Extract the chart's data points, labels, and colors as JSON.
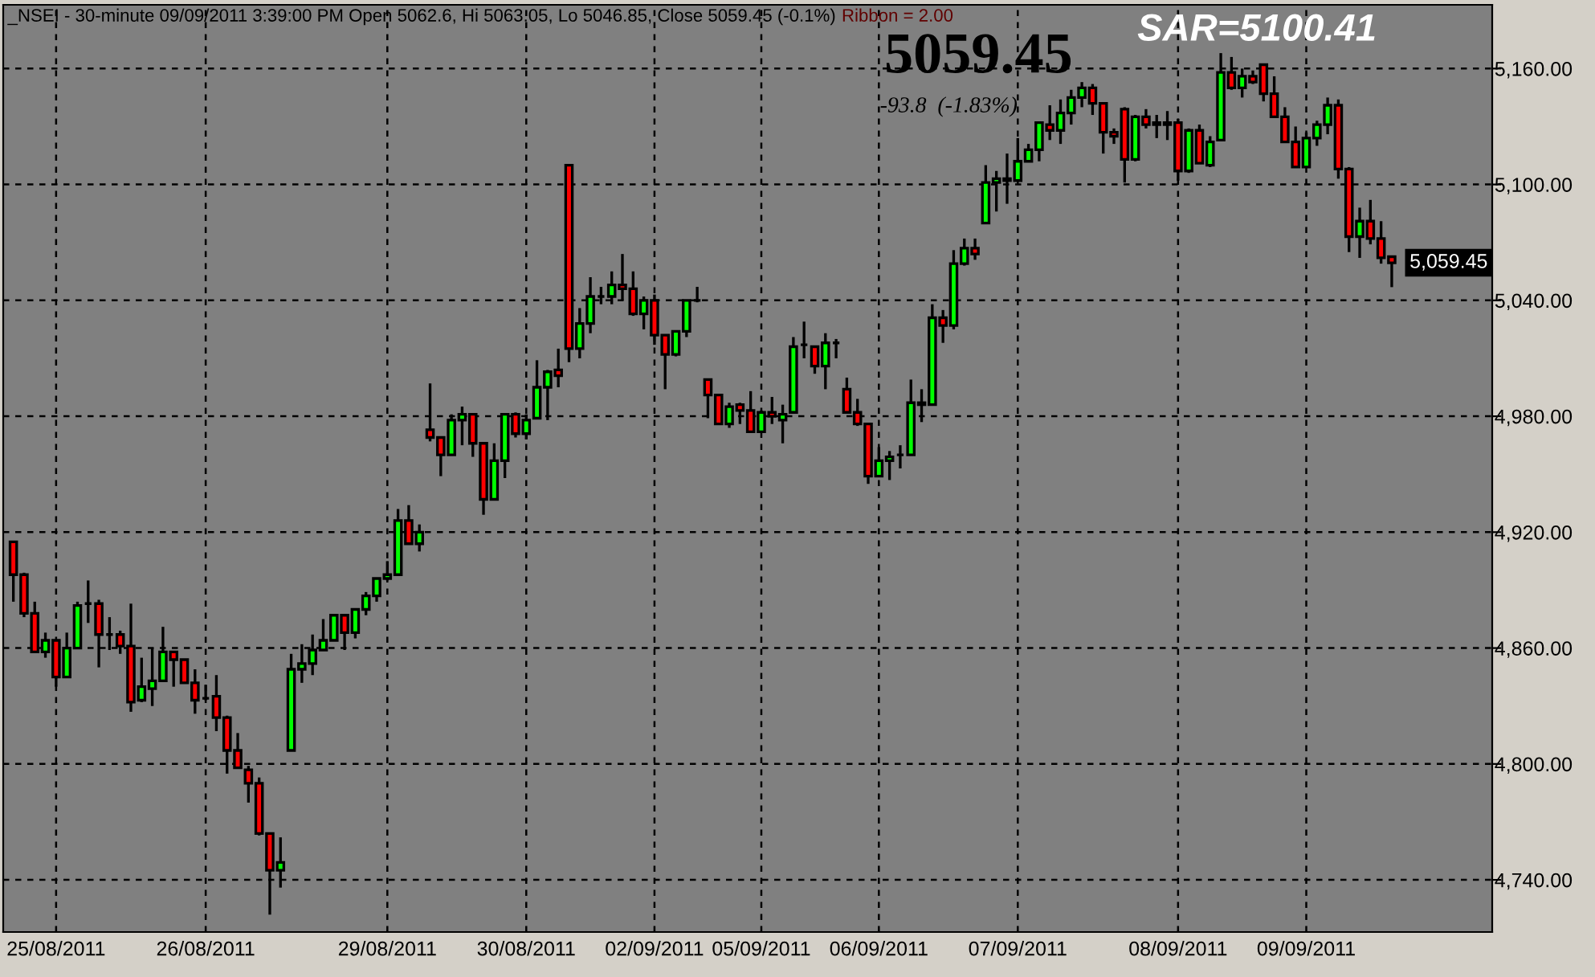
{
  "chart_data": {
    "type": "candlestick",
    "title": "_NSEI - 30-minute 09/09/2011 3:39:00 PM Open 5062.6, Hi 5063.05, Lo 5046.85, Close 5059.45 (-0.1%)",
    "annotations": [
      "Ribbon = 2.00",
      "5059.45",
      "-93.8  (-1.83%)",
      "SAR=5100.41",
      "5,059.45"
    ],
    "categories": [
      null,
      null,
      null,
      null,
      "25/08/2011",
      null,
      null,
      null,
      null,
      null,
      null,
      null,
      null,
      null,
      null,
      null,
      null,
      null,
      "26/08/2011",
      null,
      null,
      null,
      null,
      null,
      null,
      null,
      null,
      null,
      null,
      null,
      null,
      null,
      null,
      null,
      null,
      "29/08/2011",
      null,
      null,
      null,
      null,
      null,
      null,
      null,
      null,
      null,
      null,
      null,
      null,
      "30/08/2011",
      null,
      null,
      null,
      null,
      null,
      null,
      null,
      null,
      null,
      null,
      null,
      "02/09/2011",
      null,
      null,
      null,
      null,
      null,
      null,
      null,
      null,
      null,
      "05/09/2011",
      null,
      null,
      null,
      null,
      null,
      null,
      null,
      null,
      null,
      null,
      "06/09/2011",
      null,
      null,
      null,
      null,
      null,
      null,
      null,
      null,
      null,
      null,
      null,
      null,
      "07/09/2011",
      null,
      null,
      null,
      null,
      null,
      null,
      null,
      null,
      null,
      null,
      null,
      null,
      null,
      null,
      "08/09/2011",
      null,
      null,
      null,
      null,
      null,
      null,
      null,
      null,
      null,
      null,
      null,
      "09/09/2011",
      null,
      null,
      null,
      null,
      null,
      null,
      null,
      null
    ],
    "ohlc": [
      [
        4915,
        4915,
        4884,
        4898
      ],
      [
        4898,
        4899,
        4876,
        4878
      ],
      [
        4878,
        4884,
        4858,
        4858
      ],
      [
        4858,
        4868,
        4855,
        4864
      ],
      [
        4864,
        4864,
        4840,
        4845
      ],
      [
        4845,
        4868,
        4845,
        4860
      ],
      [
        4860,
        4884,
        4860,
        4882
      ],
      [
        4883,
        4895,
        4873,
        4883
      ],
      [
        4883,
        4885,
        4850,
        4867
      ],
      [
        4867,
        4876,
        4859,
        4867
      ],
      [
        4867,
        4869,
        4857,
        4861
      ],
      [
        4861,
        4883,
        4827,
        4832
      ],
      [
        4833,
        4855,
        4832,
        4840
      ],
      [
        4839,
        4860,
        4830,
        4843
      ],
      [
        4843,
        4871,
        4843,
        4858
      ],
      [
        4858,
        4858,
        4840,
        4854
      ],
      [
        4854,
        4854,
        4842,
        4842
      ],
      [
        4842,
        4849,
        4826,
        4833
      ],
      [
        4834,
        4841,
        4833,
        4834
      ],
      [
        4835,
        4846,
        4817,
        4824
      ],
      [
        4824,
        4825,
        4795,
        4807
      ],
      [
        4807,
        4816,
        4798,
        4798
      ],
      [
        4797,
        4799,
        4780,
        4790
      ],
      [
        4790,
        4793,
        4763,
        4764
      ],
      [
        4764,
        4764,
        4722,
        4745
      ],
      [
        4745,
        4762,
        4736,
        4749
      ],
      [
        4807,
        4857,
        4807,
        4849
      ],
      [
        4849,
        4862,
        4842,
        4852
      ],
      [
        4852,
        4867,
        4846,
        4859
      ],
      [
        4859,
        4875,
        4859,
        4864
      ],
      [
        4864,
        4877,
        4864,
        4877
      ],
      [
        4877,
        4877,
        4859,
        4868
      ],
      [
        4868,
        4880,
        4865,
        4880
      ],
      [
        4880,
        4889,
        4877,
        4887
      ],
      [
        4887,
        4896,
        4884,
        4896
      ],
      [
        4896,
        4905,
        4895,
        4898
      ],
      [
        4898,
        4932,
        4898,
        4926
      ],
      [
        4926,
        4934,
        4914,
        4914
      ],
      [
        4914,
        4924,
        4910,
        4920
      ],
      [
        4973,
        4997,
        4967,
        4969
      ],
      [
        4969,
        4969,
        4949,
        4960
      ],
      [
        4960,
        4981,
        4960,
        4978
      ],
      [
        4978,
        4985,
        4965,
        4981
      ],
      [
        4981,
        4981,
        4959,
        4966
      ],
      [
        4966,
        4966,
        4929,
        4937
      ],
      [
        4937,
        4966,
        4937,
        4957
      ],
      [
        4957,
        4981,
        4948,
        4981
      ],
      [
        4981,
        4982,
        4969,
        4971
      ],
      [
        4971,
        4981,
        4968,
        4978
      ],
      [
        4979,
        5009,
        4979,
        4995
      ],
      [
        4995,
        5004,
        4978,
        5003
      ],
      [
        5004,
        5015,
        4995,
        5001
      ],
      [
        5110,
        5110,
        5008,
        5015
      ],
      [
        5015,
        5036,
        5010,
        5028
      ],
      [
        5028,
        5052,
        5023,
        5042
      ],
      [
        5042,
        5047,
        5038,
        5042
      ],
      [
        5042,
        5055,
        5038,
        5048
      ],
      [
        5048,
        5064,
        5040,
        5046
      ],
      [
        5046,
        5055,
        5032,
        5033
      ],
      [
        5033,
        5042,
        5025,
        5040
      ],
      [
        5040,
        5043,
        5017,
        5022
      ],
      [
        5022,
        5022,
        4994,
        5012
      ],
      [
        5012,
        5024,
        5011,
        5024
      ],
      [
        5024,
        5040,
        5021,
        5040
      ],
      [
        5040,
        5047,
        5039,
        5040
      ],
      [
        4999,
        4999,
        4979,
        4991
      ],
      [
        4991,
        4991,
        4976,
        4976
      ],
      [
        4976,
        4987,
        4974,
        4985
      ],
      [
        4986,
        4987,
        4976,
        4983
      ],
      [
        4983,
        4993,
        4972,
        4972
      ],
      [
        4972,
        4983,
        4972,
        4982
      ],
      [
        4982,
        4990,
        4976,
        4980
      ],
      [
        4978,
        4986,
        4966,
        4981
      ],
      [
        4982,
        5021,
        4982,
        5016
      ],
      [
        5017,
        5029,
        5010,
        5017
      ],
      [
        5016,
        5016,
        5002,
        5006
      ],
      [
        5006,
        5023,
        4994,
        5018
      ],
      [
        5018,
        5020,
        5010,
        5018
      ],
      [
        4994,
        5000,
        4982,
        4982
      ],
      [
        4982,
        4989,
        4975,
        4976
      ],
      [
        4976,
        4976,
        4945,
        4949
      ],
      [
        4949,
        4964,
        4949,
        4957
      ],
      [
        4957,
        4962,
        4947,
        4959
      ],
      [
        4960,
        4965,
        4953,
        4960
      ],
      [
        4960,
        4999,
        4960,
        4987
      ],
      [
        4987,
        4994,
        4977,
        4986
      ],
      [
        4986,
        5038,
        4986,
        5031
      ],
      [
        5031,
        5035,
        5018,
        5027
      ],
      [
        5027,
        5066,
        5025,
        5059
      ],
      [
        5059,
        5072,
        5058,
        5067
      ],
      [
        5067,
        5072,
        5061,
        5064
      ],
      [
        5080,
        5110,
        5080,
        5101
      ],
      [
        5101,
        5107,
        5086,
        5103
      ],
      [
        5103,
        5116,
        5090,
        5102
      ],
      [
        5102,
        5124,
        5102,
        5112
      ],
      [
        5112,
        5121,
        5112,
        5118
      ],
      [
        5118,
        5132,
        5112,
        5132
      ],
      [
        5131,
        5141,
        5123,
        5128
      ],
      [
        5128,
        5144,
        5121,
        5137
      ],
      [
        5137,
        5149,
        5131,
        5145
      ],
      [
        5145,
        5153,
        5140,
        5150
      ],
      [
        5150,
        5152,
        5136,
        5142
      ],
      [
        5142,
        5142,
        5116,
        5127
      ],
      [
        5127,
        5129,
        5121,
        5125
      ],
      [
        5139,
        5140,
        5101,
        5113
      ],
      [
        5113,
        5136,
        5112,
        5135
      ],
      [
        5135,
        5139,
        5129,
        5131
      ],
      [
        5131,
        5136,
        5124,
        5132
      ],
      [
        5132,
        5138,
        5123,
        5131
      ],
      [
        5132,
        5134,
        5102,
        5107
      ],
      [
        5107,
        5129,
        5106,
        5128
      ],
      [
        5128,
        5131,
        5111,
        5111
      ],
      [
        5110,
        5125,
        5109,
        5122
      ],
      [
        5123,
        5168,
        5123,
        5158
      ],
      [
        5158,
        5166,
        5149,
        5150
      ],
      [
        5150,
        5160,
        5145,
        5156
      ],
      [
        5156,
        5159,
        5152,
        5153
      ],
      [
        5162,
        5162,
        5143,
        5147
      ],
      [
        5147,
        5156,
        5135,
        5135
      ],
      [
        5135,
        5140,
        5122,
        5122
      ],
      [
        5122,
        5130,
        5109,
        5109
      ],
      [
        5109,
        5127,
        5109,
        5124
      ],
      [
        5124,
        5133,
        5120,
        5131
      ],
      [
        5131,
        5145,
        5126,
        5141
      ],
      [
        5141,
        5144,
        5103,
        5108
      ],
      [
        5108,
        5109,
        5065,
        5073
      ],
      [
        5073,
        5088,
        5062,
        5081
      ],
      [
        5081,
        5092,
        5069,
        5072
      ],
      [
        5072,
        5081,
        5059,
        5062
      ],
      [
        5062.6,
        5063.05,
        5046.85,
        5059.45
      ]
    ],
    "colors": [
      "#ff0000",
      "#ff0000",
      "#ff0000",
      "#00ff00",
      "#ff0000",
      "#00ff00",
      "#00ff00",
      "#000000",
      "#ff0000",
      "#000000",
      "#ff0000",
      "#ff0000",
      "#00ff00",
      "#00ff00",
      "#00ff00",
      "#ff0000",
      "#ff0000",
      "#ff0000",
      "#000000",
      "#ff0000",
      "#ff0000",
      "#ff0000",
      "#ff0000",
      "#ff0000",
      "#ff0000",
      "#00ff00",
      "#00ff00",
      "#00ff00",
      "#00ff00",
      "#00ff00",
      "#00ff00",
      "#ff0000",
      "#00ff00",
      "#00ff00",
      "#00ff00",
      "#00ff00",
      "#00ff00",
      "#ff0000",
      "#00ff00",
      "#ff0000",
      "#ff0000",
      "#00ff00",
      "#00ff00",
      "#ff0000",
      "#ff0000",
      "#00ff00",
      "#00ff00",
      "#ff0000",
      "#00ff00",
      "#00ff00",
      "#00ff00",
      "#ff0000",
      "#ff0000",
      "#00ff00",
      "#00ff00",
      "#000000",
      "#00ff00",
      "#ff0000",
      "#ff0000",
      "#00ff00",
      "#ff0000",
      "#ff0000",
      "#00ff00",
      "#00ff00",
      "#000000",
      "#ff0000",
      "#ff0000",
      "#00ff00",
      "#ff0000",
      "#ff0000",
      "#00ff00",
      "#ff0000",
      "#00ff00",
      "#00ff00",
      "#000000",
      "#ff0000",
      "#00ff00",
      "#000000",
      "#ff0000",
      "#ff0000",
      "#ff0000",
      "#00ff00",
      "#00ff00",
      "#000000",
      "#00ff00",
      "#ff0000",
      "#00ff00",
      "#ff0000",
      "#00ff00",
      "#00ff00",
      "#ff0000",
      "#00ff00",
      "#00ff00",
      "#ff0000",
      "#00ff00",
      "#00ff00",
      "#00ff00",
      "#ff0000",
      "#00ff00",
      "#00ff00",
      "#00ff00",
      "#ff0000",
      "#ff0000",
      "#ff0000",
      "#ff0000",
      "#00ff00",
      "#ff0000",
      "#00ff00",
      "#ff0000",
      "#ff0000",
      "#00ff00",
      "#ff0000",
      "#00ff00",
      "#00ff00",
      "#ff0000",
      "#00ff00",
      "#ff0000",
      "#ff0000",
      "#ff0000",
      "#ff0000",
      "#ff0000",
      "#00ff00",
      "#00ff00",
      "#00ff00",
      "#ff0000",
      "#ff0000",
      "#00ff00",
      "#ff0000",
      "#ff0000",
      "#ff0000"
    ],
    "ylim": [
      4713,
      5193
    ],
    "yticks": [
      {
        "value": 4740,
        "label": "4,740.00"
      },
      {
        "value": 4800,
        "label": "4,800.00"
      },
      {
        "value": 4860,
        "label": "4,860.00"
      },
      {
        "value": 4920,
        "label": "4,920.00"
      },
      {
        "value": 4980,
        "label": "4,980.00"
      },
      {
        "value": 5040,
        "label": "5,040.00"
      },
      {
        "value": 5100,
        "label": "5,100.00"
      },
      {
        "value": 5160,
        "label": "5,160.00"
      }
    ],
    "grid": true
  }
}
